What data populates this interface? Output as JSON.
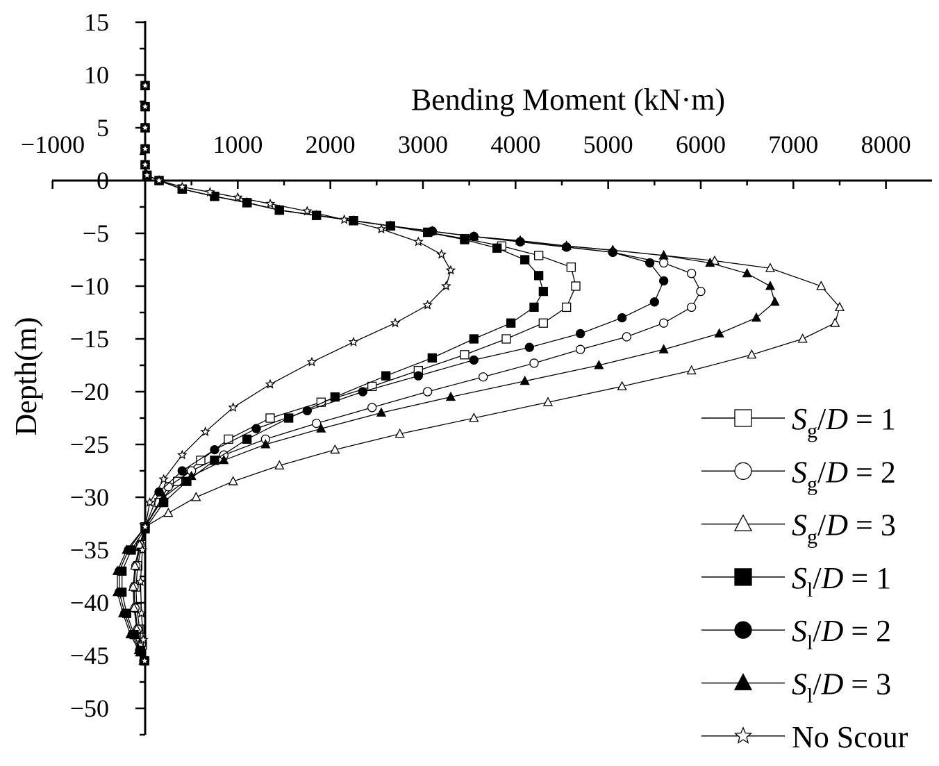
{
  "chart_data": {
    "type": "line",
    "xlabel": "Bending Moment (kN·m)",
    "ylabel": "Depth(m)",
    "xlim": [
      -1000,
      8000
    ],
    "ylim": [
      -53,
      15
    ],
    "x_ticks": [
      -1000,
      1000,
      2000,
      3000,
      4000,
      5000,
      6000,
      7000,
      8000
    ],
    "x_tick_labels": [
      "−1000",
      "1000",
      "2000",
      "3000",
      "4000",
      "5000",
      "6000",
      "7000",
      "8000"
    ],
    "y_ticks": [
      15,
      10,
      5,
      0,
      -5,
      -10,
      -15,
      -20,
      -25,
      -30,
      -35,
      -40,
      -45,
      -50
    ],
    "y_tick_labels": [
      "15",
      "10",
      "5",
      "0",
      "−5",
      "−10",
      "−15",
      "−20",
      "−25",
      "−30",
      "−35",
      "−40",
      "−45",
      "−50"
    ],
    "grid": false,
    "legend_position": "bottom-right",
    "series": [
      {
        "legend": {
          "main": "S",
          "sub": "g",
          "rest": "/D = 1"
        },
        "marker": "square-open",
        "x": [
          0,
          0,
          0,
          0,
          0,
          20,
          150,
          400,
          750,
          1100,
          1450,
          1850,
          2250,
          2650,
          3050,
          3450,
          3850,
          4250,
          4600,
          4650,
          4550,
          4300,
          3900,
          3450,
          2950,
          2450,
          1900,
          1350,
          900,
          600,
          350,
          150,
          0,
          -40,
          -80,
          -100,
          -90,
          -60,
          -30,
          -5
        ],
        "y": [
          9,
          7,
          5,
          3,
          1.5,
          0.5,
          0,
          -0.8,
          -1.5,
          -2.1,
          -2.8,
          -3.3,
          -3.8,
          -4.3,
          -4.9,
          -5.5,
          -6.2,
          -7.1,
          -8.2,
          -10,
          -12,
          -13.5,
          -15,
          -16.5,
          -18,
          -19.5,
          -21,
          -22.5,
          -24.5,
          -26.5,
          -28.5,
          -30.5,
          -32.8,
          -34.5,
          -36.5,
          -38.5,
          -40.5,
          -42.5,
          -44,
          -45.5
        ]
      },
      {
        "legend": {
          "main": "S",
          "sub": "g",
          "rest": "/D = 2"
        },
        "marker": "circle-open",
        "x": [
          0,
          0,
          0,
          0,
          0,
          20,
          150,
          400,
          750,
          1100,
          1450,
          1850,
          2250,
          2650,
          3100,
          3550,
          4050,
          4550,
          5050,
          5600,
          5900,
          6000,
          5900,
          5600,
          5200,
          4700,
          4200,
          3650,
          3050,
          2450,
          1850,
          1300,
          850,
          500,
          250,
          0,
          -50,
          -100,
          -120,
          -110,
          -80,
          -40,
          -10
        ],
        "y": [
          9,
          7,
          5,
          3,
          1.5,
          0.5,
          0,
          -0.8,
          -1.5,
          -2.1,
          -2.8,
          -3.3,
          -3.8,
          -4.3,
          -4.8,
          -5.3,
          -5.8,
          -6.3,
          -6.8,
          -7.8,
          -8.8,
          -10.5,
          -12,
          -13.5,
          -14.8,
          -16,
          -17.3,
          -18.6,
          -20,
          -21.5,
          -23,
          -24.5,
          -26,
          -27.5,
          -29,
          -32.8,
          -34.5,
          -36.5,
          -38.5,
          -40.5,
          -42.5,
          -44,
          -45.5
        ]
      },
      {
        "legend": {
          "main": "S",
          "sub": "g",
          "rest": "/D = 3"
        },
        "marker": "triangle-open",
        "x": [
          0,
          0,
          0,
          0,
          0,
          20,
          150,
          400,
          750,
          1100,
          1450,
          1850,
          2250,
          2650,
          3100,
          3550,
          4050,
          4550,
          5050,
          5600,
          6150,
          6750,
          7300,
          7500,
          7450,
          7100,
          6550,
          5900,
          5150,
          4350,
          3550,
          2750,
          2050,
          1450,
          950,
          550,
          250,
          0,
          -60,
          -110,
          -130,
          -120,
          -90,
          -50,
          -15
        ],
        "y": [
          9,
          7,
          5,
          3,
          1.5,
          0.5,
          0,
          -0.8,
          -1.5,
          -2.1,
          -2.8,
          -3.3,
          -3.8,
          -4.3,
          -4.8,
          -5.3,
          -5.7,
          -6.2,
          -6.6,
          -7.1,
          -7.6,
          -8.3,
          -10,
          -12,
          -13.5,
          -15,
          -16.5,
          -18,
          -19.5,
          -21,
          -22.5,
          -24,
          -25.5,
          -27,
          -28.5,
          -30,
          -31.5,
          -32.8,
          -34.5,
          -36.5,
          -38.5,
          -40.5,
          -42.5,
          -44,
          -45.5
        ]
      },
      {
        "legend": {
          "main": "S",
          "sub": "l",
          "rest": "/D = 1"
        },
        "marker": "square-filled",
        "x": [
          0,
          0,
          0,
          0,
          0,
          20,
          150,
          400,
          750,
          1100,
          1450,
          1850,
          2250,
          2650,
          3050,
          3450,
          3800,
          4100,
          4250,
          4300,
          4200,
          3950,
          3550,
          3100,
          2600,
          2050,
          1550,
          1100,
          750,
          450,
          200,
          0,
          -150,
          -250,
          -250,
          -200,
          -120,
          -50,
          -10
        ],
        "y": [
          9,
          7,
          5,
          3,
          1.5,
          0.5,
          0,
          -0.8,
          -1.5,
          -2.1,
          -2.8,
          -3.3,
          -3.8,
          -4.3,
          -4.9,
          -5.6,
          -6.4,
          -7.5,
          -9,
          -10.5,
          -12,
          -13.5,
          -15,
          -16.8,
          -18.5,
          -20.5,
          -22.5,
          -24.5,
          -26.5,
          -28.5,
          -30.5,
          -33,
          -35,
          -37,
          -39,
          -41,
          -43,
          -44.5,
          -45.5
        ]
      },
      {
        "legend": {
          "main": "S",
          "sub": "l",
          "rest": "/D = 2"
        },
        "marker": "circle-filled",
        "x": [
          0,
          0,
          0,
          0,
          0,
          20,
          150,
          400,
          750,
          1100,
          1450,
          1850,
          2250,
          2650,
          3100,
          3550,
          4050,
          4550,
          5050,
          5450,
          5600,
          5500,
          5150,
          4700,
          4150,
          3550,
          2950,
          2350,
          1750,
          1200,
          750,
          400,
          150,
          0,
          -180,
          -280,
          -280,
          -220,
          -140,
          -60,
          -15
        ],
        "y": [
          9,
          7,
          5,
          3,
          1.5,
          0.5,
          0,
          -0.8,
          -1.5,
          -2.1,
          -2.8,
          -3.3,
          -3.8,
          -4.3,
          -4.8,
          -5.3,
          -5.8,
          -6.3,
          -6.8,
          -7.8,
          -9.5,
          -11.5,
          -13,
          -14.5,
          -15.8,
          -17,
          -18.5,
          -20,
          -21.8,
          -23.5,
          -25.5,
          -27.5,
          -29.5,
          -32.8,
          -35,
          -37,
          -39,
          -41,
          -43,
          -44.5,
          -45.5
        ]
      },
      {
        "legend": {
          "main": "S",
          "sub": "l",
          "rest": "/D = 3"
        },
        "marker": "triangle-filled",
        "x": [
          0,
          0,
          0,
          0,
          0,
          20,
          150,
          400,
          750,
          1100,
          1450,
          1850,
          2250,
          2650,
          3100,
          3550,
          4050,
          4550,
          5050,
          5600,
          6100,
          6500,
          6750,
          6800,
          6600,
          6200,
          5600,
          4900,
          4100,
          3300,
          2550,
          1900,
          1300,
          850,
          500,
          200,
          0,
          -200,
          -300,
          -300,
          -240,
          -160,
          -70,
          -20
        ],
        "y": [
          9,
          7,
          5,
          3,
          1.5,
          0.5,
          0,
          -0.8,
          -1.5,
          -2.1,
          -2.8,
          -3.3,
          -3.8,
          -4.3,
          -4.8,
          -5.3,
          -5.7,
          -6.2,
          -6.6,
          -7.1,
          -7.8,
          -8.8,
          -10,
          -11.5,
          -13,
          -14.5,
          -16,
          -17.5,
          -19,
          -20.5,
          -22,
          -23.5,
          -25,
          -26.5,
          -28,
          -30,
          -32.8,
          -35,
          -37,
          -39,
          -41,
          -43,
          -44.5,
          -45.5
        ]
      },
      {
        "legend": {
          "main": "No Scour",
          "sub": "",
          "rest": ""
        },
        "marker": "star-open",
        "x": [
          0,
          0,
          0,
          0,
          0,
          20,
          150,
          400,
          700,
          1000,
          1350,
          1750,
          2150,
          2550,
          2950,
          3200,
          3300,
          3250,
          3050,
          2700,
          2250,
          1800,
          1350,
          950,
          650,
          400,
          200,
          50,
          0,
          -30,
          -50,
          -40,
          -20,
          -5
        ],
        "y": [
          9,
          7,
          5,
          3,
          1.5,
          0.5,
          0,
          -0.6,
          -1.1,
          -1.6,
          -2.2,
          -2.9,
          -3.7,
          -4.6,
          -5.8,
          -7,
          -8.5,
          -10,
          -11.8,
          -13.5,
          -15.3,
          -17.2,
          -19.3,
          -21.5,
          -23.8,
          -26,
          -28.3,
          -30.5,
          -32.8,
          -35,
          -38,
          -41,
          -43.5,
          -45.5
        ]
      }
    ]
  }
}
